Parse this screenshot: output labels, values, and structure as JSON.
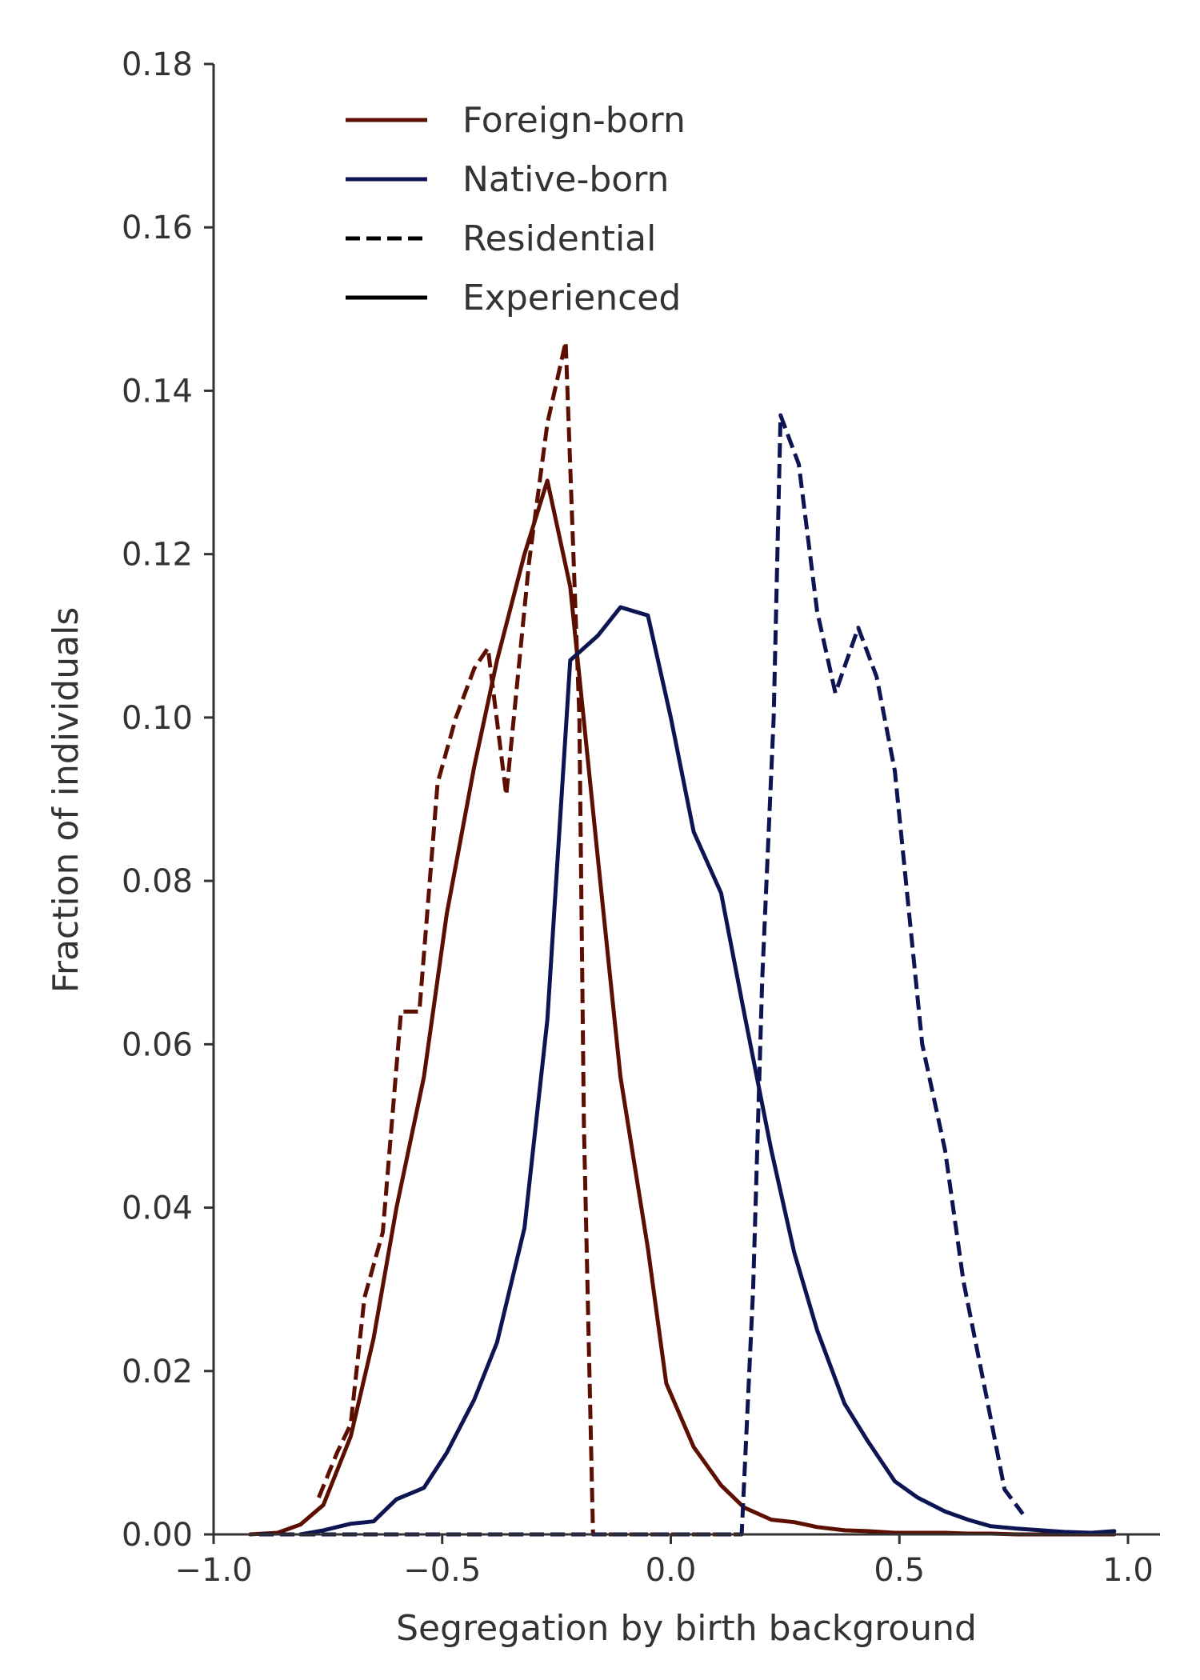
{
  "chart_data": {
    "type": "line",
    "title": "",
    "xlabel": "Segregation by birth background",
    "ylabel": "Fraction of individuals",
    "xlim": [
      -1.0,
      1.07
    ],
    "ylim": [
      0,
      0.18
    ],
    "xticks": [
      -1.0,
      -0.5,
      0.0,
      0.5,
      1.0
    ],
    "xtick_labels": [
      "−1.0",
      "−0.5",
      "0.0",
      "0.5",
      "1.0"
    ],
    "yticks": [
      0,
      0.02,
      0.04,
      0.06,
      0.08,
      0.1,
      0.12,
      0.14,
      0.16,
      0.18
    ],
    "ytick_labels": [
      "0.00",
      "0.02",
      "0.04",
      "0.06",
      "0.08",
      "0.10",
      "0.12",
      "0.14",
      "0.16",
      "0.18"
    ],
    "grid": false,
    "legend_position": "top-left",
    "legend": [
      {
        "label": "Foreign-born",
        "color": "#5c0f00",
        "style": "solid"
      },
      {
        "label": "Native-born",
        "color": "#0d1452",
        "style": "solid"
      },
      {
        "label": "Residential",
        "color": "#000000",
        "style": "dashed"
      },
      {
        "label": "Experienced",
        "color": "#000000",
        "style": "solid"
      }
    ],
    "series": [
      {
        "group": "Foreign-born",
        "kind": "Experienced",
        "color": "#5c0f00",
        "dashed": false,
        "points": [
          [
            -0.92,
            0.0
          ],
          [
            -0.86,
            0.0002
          ],
          [
            -0.81,
            0.0012
          ],
          [
            -0.76,
            0.0036
          ],
          [
            -0.7,
            0.012
          ],
          [
            -0.65,
            0.024
          ],
          [
            -0.6,
            0.04
          ],
          [
            -0.54,
            0.056
          ],
          [
            -0.49,
            0.076
          ],
          [
            -0.43,
            0.094
          ],
          [
            -0.38,
            0.107
          ],
          [
            -0.32,
            0.12
          ],
          [
            -0.27,
            0.129
          ],
          [
            -0.22,
            0.116
          ],
          [
            -0.16,
            0.083
          ],
          [
            -0.11,
            0.056
          ],
          [
            -0.05,
            0.035
          ],
          [
            -0.01,
            0.0185
          ],
          [
            0.05,
            0.0107
          ],
          [
            0.11,
            0.006
          ],
          [
            0.16,
            0.0033
          ],
          [
            0.22,
            0.0018
          ],
          [
            0.27,
            0.0015
          ],
          [
            0.32,
            0.0009
          ],
          [
            0.38,
            0.0005
          ],
          [
            0.43,
            0.0004
          ],
          [
            0.49,
            0.0002
          ],
          [
            0.54,
            0.0002
          ],
          [
            0.6,
            0.0002
          ],
          [
            0.65,
            0.0001
          ],
          [
            0.7,
            0.0001
          ],
          [
            0.76,
            0.0
          ],
          [
            0.81,
            0.0
          ],
          [
            0.86,
            0.0
          ],
          [
            0.92,
            0.0
          ],
          [
            0.97,
            0.0
          ]
        ]
      },
      {
        "group": "Foreign-born",
        "kind": "Residential",
        "color": "#5c0f00",
        "dashed": true,
        "points": [
          [
            -0.77,
            0.0045
          ],
          [
            -0.73,
            0.01
          ],
          [
            -0.7,
            0.0135
          ],
          [
            -0.67,
            0.029
          ],
          [
            -0.63,
            0.037
          ],
          [
            -0.59,
            0.064
          ],
          [
            -0.55,
            0.064
          ],
          [
            -0.51,
            0.092
          ],
          [
            -0.47,
            0.1
          ],
          [
            -0.43,
            0.106
          ],
          [
            -0.4,
            0.1085
          ],
          [
            -0.36,
            0.0905
          ],
          [
            -0.31,
            0.119
          ],
          [
            -0.27,
            0.136
          ],
          [
            -0.23,
            0.146
          ],
          [
            -0.2,
            0.1
          ],
          [
            -0.19,
            0.05
          ],
          [
            -0.17,
            0.0
          ],
          [
            -0.1,
            0.0
          ],
          [
            0.0,
            0.0
          ],
          [
            0.1,
            0.0
          ],
          [
            0.15,
            0.0
          ]
        ]
      },
      {
        "group": "Native-born",
        "kind": "Experienced",
        "color": "#0d1452",
        "dashed": false,
        "points": [
          [
            -0.81,
            0.0
          ],
          [
            -0.76,
            0.0005
          ],
          [
            -0.7,
            0.0013
          ],
          [
            -0.65,
            0.0016
          ],
          [
            -0.6,
            0.0043
          ],
          [
            -0.54,
            0.0057
          ],
          [
            -0.49,
            0.01
          ],
          [
            -0.43,
            0.0165
          ],
          [
            -0.38,
            0.0235
          ],
          [
            -0.32,
            0.0375
          ],
          [
            -0.27,
            0.063
          ],
          [
            -0.22,
            0.107
          ],
          [
            -0.16,
            0.11
          ],
          [
            -0.11,
            0.1135
          ],
          [
            -0.05,
            0.1125
          ],
          [
            0.0,
            0.1
          ],
          [
            0.05,
            0.086
          ],
          [
            0.11,
            0.0785
          ],
          [
            0.16,
            0.064
          ],
          [
            0.22,
            0.047
          ],
          [
            0.27,
            0.0345
          ],
          [
            0.32,
            0.025
          ],
          [
            0.38,
            0.016
          ],
          [
            0.43,
            0.0115
          ],
          [
            0.49,
            0.0065
          ],
          [
            0.54,
            0.0045
          ],
          [
            0.6,
            0.0028
          ],
          [
            0.65,
            0.0018
          ],
          [
            0.7,
            0.001
          ],
          [
            0.76,
            0.0007
          ],
          [
            0.81,
            0.0005
          ],
          [
            0.86,
            0.0003
          ],
          [
            0.92,
            0.0002
          ],
          [
            0.97,
            0.0004
          ]
        ]
      },
      {
        "group": "Native-born",
        "kind": "Residential",
        "color": "#0d1452",
        "dashed": true,
        "points": [
          [
            -0.9,
            0.0
          ],
          [
            -0.7,
            0.0
          ],
          [
            -0.5,
            0.0
          ],
          [
            -0.3,
            0.0
          ],
          [
            -0.1,
            0.0
          ],
          [
            0.1,
            0.0
          ],
          [
            0.155,
            0.0
          ],
          [
            0.18,
            0.03
          ],
          [
            0.2,
            0.068
          ],
          [
            0.225,
            0.1
          ],
          [
            0.24,
            0.137
          ],
          [
            0.28,
            0.131
          ],
          [
            0.32,
            0.113
          ],
          [
            0.36,
            0.103
          ],
          [
            0.41,
            0.111
          ],
          [
            0.45,
            0.105
          ],
          [
            0.49,
            0.0935
          ],
          [
            0.55,
            0.06
          ],
          [
            0.6,
            0.047
          ],
          [
            0.64,
            0.031
          ],
          [
            0.69,
            0.017
          ],
          [
            0.73,
            0.0055
          ],
          [
            0.77,
            0.0025
          ]
        ]
      }
    ]
  }
}
